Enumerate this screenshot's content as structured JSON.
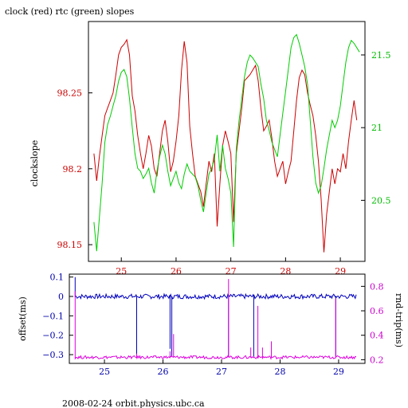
{
  "colors": {
    "clock": "#cc0000",
    "rtc": "#00cc00",
    "offset": "#0000bb",
    "round_trip": "#dd00dd",
    "axes": "#000000",
    "ticks_red": "#cc0000",
    "ticks_green": "#00bb00",
    "ticks_blue": "#0000aa",
    "ticks_magenta": "#cc00cc"
  },
  "footer": "2008-02-24  orbit.physics.ubc.ca",
  "chart_data": [
    {
      "type": "line",
      "title": "clock (red) rtc (green) slopes",
      "xlabel": "",
      "ylabel": "clockslope",
      "y2label": "",
      "xlim": [
        24.4,
        29.45
      ],
      "ylim": [
        98.139,
        98.297
      ],
      "y2lim": [
        20.08,
        21.73
      ],
      "x_ticks": [
        25,
        26,
        27,
        28,
        29
      ],
      "x_tick_labels": [
        "25",
        "26",
        "27",
        "28",
        "29"
      ],
      "y_ticks": [
        98.15,
        98.2,
        98.25
      ],
      "y_tick_labels": [
        "98.15",
        "98.2",
        "98.25"
      ],
      "y2_ticks": [
        20.5,
        21,
        21.5
      ],
      "y2_tick_labels": [
        "20.5",
        "21",
        "21.5"
      ],
      "grid": false,
      "series": [
        {
          "axis": "left",
          "color_key": "clock",
          "x": [
            24.5,
            24.55,
            24.6,
            24.65,
            24.7,
            24.75,
            24.8,
            24.85,
            24.9,
            24.95,
            25.0,
            25.05,
            25.1,
            25.15,
            25.2,
            25.25,
            25.3,
            25.35,
            25.4,
            25.45,
            25.5,
            25.55,
            25.6,
            25.65,
            25.7,
            25.75,
            25.8,
            25.85,
            25.9,
            25.95,
            26.0,
            26.05,
            26.1,
            26.15,
            26.2,
            26.25,
            26.3,
            26.35,
            26.4,
            26.45,
            26.5,
            26.55,
            26.6,
            26.65,
            26.7,
            26.75,
            26.8,
            26.85,
            26.9,
            26.95,
            27.0,
            27.05,
            27.1,
            27.15,
            27.2,
            27.25,
            27.3,
            27.35,
            27.4,
            27.45,
            27.5,
            27.55,
            27.6,
            27.65,
            27.7,
            27.75,
            27.8,
            27.85,
            27.9,
            27.95,
            28.0,
            28.05,
            28.1,
            28.15,
            28.2,
            28.25,
            28.3,
            28.35,
            28.4,
            28.45,
            28.5,
            28.55,
            28.6,
            28.65,
            28.7,
            28.75,
            28.8,
            28.85,
            28.9,
            28.95,
            29.0,
            29.05,
            29.1,
            29.15,
            29.2,
            29.25,
            29.3
          ],
          "values": [
            98.21,
            98.192,
            98.208,
            98.222,
            98.235,
            98.24,
            98.245,
            98.25,
            98.262,
            98.275,
            98.28,
            98.282,
            98.285,
            98.275,
            98.248,
            98.238,
            98.222,
            98.21,
            98.2,
            98.21,
            98.222,
            98.215,
            98.2,
            98.195,
            98.21,
            98.225,
            98.232,
            98.218,
            98.198,
            98.205,
            98.218,
            98.235,
            98.265,
            98.284,
            98.27,
            98.228,
            98.21,
            98.195,
            98.19,
            98.185,
            98.175,
            98.19,
            98.205,
            98.198,
            98.21,
            98.162,
            98.19,
            98.215,
            98.225,
            98.218,
            98.21,
            98.165,
            98.21,
            98.225,
            98.24,
            98.258,
            98.26,
            98.262,
            98.265,
            98.268,
            98.258,
            98.24,
            98.225,
            98.228,
            98.232,
            98.22,
            98.205,
            98.195,
            98.2,
            98.205,
            98.19,
            98.198,
            98.205,
            98.225,
            98.245,
            98.26,
            98.265,
            98.262,
            98.25,
            98.242,
            98.235,
            98.222,
            98.205,
            98.18,
            98.145,
            98.17,
            98.185,
            98.2,
            98.19,
            98.2,
            98.198,
            98.21,
            98.2,
            98.218,
            98.232,
            98.245,
            98.232
          ]
        },
        {
          "axis": "right",
          "color_key": "rtc",
          "x": [
            24.5,
            24.55,
            24.6,
            24.65,
            24.7,
            24.75,
            24.8,
            24.85,
            24.9,
            24.95,
            25.0,
            25.05,
            25.1,
            25.15,
            25.2,
            25.25,
            25.3,
            25.35,
            25.4,
            25.45,
            25.5,
            25.55,
            25.6,
            25.65,
            25.7,
            25.75,
            25.8,
            25.85,
            25.9,
            25.95,
            26.0,
            26.05,
            26.1,
            26.15,
            26.2,
            26.25,
            26.3,
            26.35,
            26.4,
            26.45,
            26.5,
            26.55,
            26.6,
            26.65,
            26.7,
            26.75,
            26.8,
            26.85,
            26.9,
            26.95,
            27.0,
            27.05,
            27.1,
            27.15,
            27.2,
            27.25,
            27.3,
            27.35,
            27.4,
            27.45,
            27.5,
            27.55,
            27.6,
            27.65,
            27.7,
            27.75,
            27.8,
            27.85,
            27.9,
            27.95,
            28.0,
            28.05,
            28.1,
            28.15,
            28.2,
            28.25,
            28.3,
            28.35,
            28.4,
            28.45,
            28.5,
            28.55,
            28.6,
            28.65,
            28.7,
            28.75,
            28.8,
            28.85,
            28.9,
            28.95,
            29.0,
            29.05,
            29.1,
            29.15,
            29.2,
            29.25,
            29.3,
            29.35
          ],
          "values": [
            20.35,
            20.15,
            20.38,
            20.62,
            20.9,
            21.02,
            21.08,
            21.15,
            21.22,
            21.32,
            21.38,
            21.4,
            21.35,
            21.2,
            21.0,
            20.82,
            20.72,
            20.7,
            20.65,
            20.68,
            20.72,
            20.62,
            20.55,
            20.7,
            20.8,
            20.88,
            20.82,
            20.7,
            20.6,
            20.65,
            20.7,
            20.62,
            20.58,
            20.68,
            20.75,
            20.7,
            20.68,
            20.66,
            20.6,
            20.5,
            20.42,
            20.55,
            20.68,
            20.72,
            20.78,
            20.95,
            20.7,
            20.88,
            20.72,
            20.65,
            20.55,
            20.18,
            20.85,
            21.05,
            21.2,
            21.35,
            21.45,
            21.5,
            21.48,
            21.45,
            21.42,
            21.3,
            21.2,
            21.05,
            20.98,
            20.9,
            20.85,
            20.8,
            20.95,
            21.1,
            21.25,
            21.4,
            21.55,
            21.62,
            21.64,
            21.58,
            21.5,
            21.42,
            21.3,
            21.05,
            20.8,
            20.62,
            20.55,
            20.6,
            20.72,
            20.85,
            20.95,
            21.05,
            21.0,
            21.05,
            21.15,
            21.3,
            21.45,
            21.55,
            21.6,
            21.58,
            21.55,
            21.52
          ]
        }
      ]
    },
    {
      "type": "line",
      "title": "",
      "xlabel": "",
      "ylabel": "offset(ms)",
      "y2label": "rnd-trip(ms)",
      "xlim": [
        24.4,
        29.45
      ],
      "ylim": [
        -0.345,
        0.115
      ],
      "y2lim": [
        0.17,
        0.9
      ],
      "x_ticks": [
        25,
        26,
        27,
        28,
        29
      ],
      "x_tick_labels": [
        "25",
        "26",
        "27",
        "28",
        "29"
      ],
      "y_ticks": [
        -0.3,
        -0.2,
        -0.1,
        0,
        0.1
      ],
      "y_tick_labels": [
        "−0.3",
        "−0.2",
        "−0.1",
        "0",
        "0.1"
      ],
      "y2_ticks": [
        0.2,
        0.4,
        0.6,
        0.8
      ],
      "y2_tick_labels": [
        "0.2",
        "0.4",
        "0.6",
        "0.8"
      ],
      "grid": false,
      "series": [
        {
          "axis": "left",
          "color_key": "offset",
          "baseline": 0.0,
          "spikes": [
            {
              "x": 24.5,
              "value": 0.1
            },
            {
              "x": 25.55,
              "value": -0.31
            },
            {
              "x": 26.12,
              "value": -0.27
            },
            {
              "x": 26.15,
              "value": -0.31
            },
            {
              "x": 27.12,
              "value": -0.31
            },
            {
              "x": 27.55,
              "value": -0.31
            },
            {
              "x": 28.95,
              "value": -0.31
            }
          ]
        },
        {
          "axis": "right",
          "color_key": "round_trip",
          "baseline": 0.22,
          "spikes": [
            {
              "x": 24.5,
              "value": 0.76
            },
            {
              "x": 25.55,
              "value": 0.25
            },
            {
              "x": 26.12,
              "value": 0.27
            },
            {
              "x": 26.18,
              "value": 0.41
            },
            {
              "x": 27.12,
              "value": 0.86
            },
            {
              "x": 27.5,
              "value": 0.3
            },
            {
              "x": 27.62,
              "value": 0.64
            },
            {
              "x": 27.7,
              "value": 0.3
            },
            {
              "x": 27.85,
              "value": 0.35
            },
            {
              "x": 28.95,
              "value": 0.7
            }
          ]
        }
      ]
    }
  ]
}
